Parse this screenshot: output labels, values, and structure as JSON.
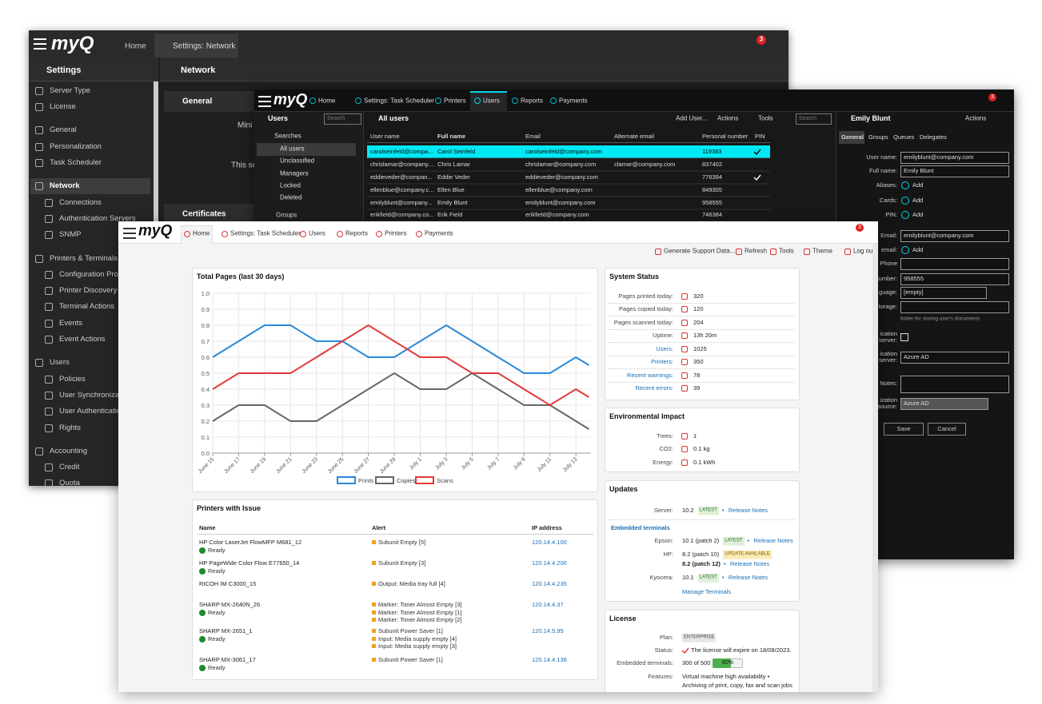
{
  "back": {
    "brand": "myQ",
    "tabs": [
      "Home",
      "Settings: Network"
    ],
    "badge": "3",
    "sidebar_title": "Settings",
    "panel_title": "Network",
    "sidebar": [
      "Server Type",
      "License",
      "General",
      "Personalization",
      "Task Scheduler",
      "Network",
      "Connections",
      "Authentication Servers",
      "SNMP",
      "Printers & Terminals",
      "Configuration Pro",
      "Printer Discovery",
      "Terminal Actions",
      "Events",
      "Event Actions",
      "Users",
      "Policies",
      "User Synchronizat",
      "User Authenticatio",
      "Rights",
      "Accounting",
      "Credit",
      "Quota"
    ],
    "sections": [
      "General",
      "Certificates"
    ],
    "texts": [
      "Mini",
      "This se"
    ]
  },
  "middle": {
    "brand": "myQ",
    "tabs": [
      "Home",
      "Settings: Task Scheduler",
      "Printers",
      "Users",
      "Reports",
      "Payments"
    ],
    "badge": "3",
    "left": {
      "title": "Users",
      "search": "Search",
      "searches": "Searches",
      "items": [
        "All users",
        "Unclassified",
        "Managers",
        "Locked",
        "Deleted"
      ],
      "groups": "Groups"
    },
    "list": {
      "title": "All users",
      "toolbar": [
        "Add User...",
        "Actions",
        "Tools"
      ],
      "search": "Search",
      "columns": [
        "User name",
        "Full name",
        "Email",
        "Alternate email",
        "Personal number",
        "PIN"
      ],
      "rows": [
        [
          "carolseinfeld@compa...",
          "Carol Seinfeld",
          "carolseinfeld@company.com",
          null,
          "119383"
        ],
        [
          "chrislamar@company....",
          "Chris Lamar",
          "chrislamar@company.com",
          "clamar@company.com",
          "837402"
        ],
        [
          "eddieveder@compan...",
          "Eddie Veder",
          "eddieveder@company.com",
          null,
          "776394"
        ],
        [
          "ellenblue@company.c...",
          "Ellen Blue",
          "ellenblue@company.com",
          null,
          "849305"
        ],
        [
          "emilyblunt@company...",
          "Emily Blunt",
          "emilyblunt@company.com",
          null,
          "958555"
        ],
        [
          "erikfield@company.co...",
          "Erik Field",
          "erikfield@company.com",
          null,
          "746384"
        ]
      ]
    },
    "detail": {
      "title": "Emily Blunt",
      "actions": "Actions",
      "tabs": [
        "General",
        "Groups",
        "Queues",
        "Delegates"
      ],
      "fields": [
        {
          "label": "User name:",
          "value": "emilyblunt@company.com"
        },
        {
          "label": "Full name:",
          "value": "Emily Blunt"
        },
        {
          "label": "Aliases:",
          "value": "Add"
        },
        {
          "label": "Cards:",
          "value": "Add"
        },
        {
          "label": "PIN:",
          "value": "Add"
        },
        {
          "label": "Email:",
          "value": "emilyblunt@company.com"
        },
        {
          "label": "email:",
          "value": "Add"
        },
        {
          "label": "Phone"
        },
        {
          "label": "number:",
          "value": "958555"
        },
        {
          "label": "guage:",
          "value": "[empty]"
        },
        {
          "label": "torage:"
        },
        {
          "label": "ication server:"
        },
        {
          "label": "ication server:",
          "value": "Azure AD"
        },
        {
          "label": "Notes:"
        },
        {
          "label": "ization source:",
          "value": "Azure AD"
        }
      ],
      "hint": "folder for storing user's documents",
      "buttons": [
        "Save",
        "Cancel"
      ]
    }
  },
  "front": {
    "brand": "myQ",
    "tabs": [
      "Home",
      "Settings: Task Scheduler",
      "Users",
      "Reports",
      "Printers",
      "Payments"
    ],
    "badge": "3",
    "toolbar": [
      "Generate Support Data...",
      "Refresh",
      "Tools",
      "Theme",
      "Log out"
    ],
    "chart": {
      "type": "line",
      "title": "Total Pages (last 30 days)",
      "x": [
        0,
        2,
        4,
        6,
        8,
        10,
        12,
        14,
        16,
        18,
        20,
        22,
        24,
        26,
        28,
        29
      ],
      "xlim": [
        0,
        29
      ],
      "xticks": [
        {
          "value": 0,
          "label": "June 15"
        },
        {
          "value": 2,
          "label": "June 17"
        },
        {
          "value": 4,
          "label": "June 19"
        },
        {
          "value": 6,
          "label": "June 21"
        },
        {
          "value": 8,
          "label": "June 23"
        },
        {
          "value": 10,
          "label": "June 25"
        },
        {
          "value": 12,
          "label": "June 27"
        },
        {
          "value": 14,
          "label": "June 29"
        },
        {
          "value": 16,
          "label": "July 1"
        },
        {
          "value": 18,
          "label": "July 3"
        },
        {
          "value": 20,
          "label": "July 5"
        },
        {
          "value": 22,
          "label": "July 7"
        },
        {
          "value": 24,
          "label": "July 9"
        },
        {
          "value": 26,
          "label": "July 11"
        },
        {
          "value": 28,
          "label": "July 13"
        }
      ],
      "ylim": [
        0,
        1
      ],
      "yticks": [
        {
          "value": 0,
          "label": "0.0"
        },
        0.1,
        0.2,
        0.3,
        0.4,
        0.5,
        0.6,
        0.7,
        0.8,
        0.9,
        {
          "value": 1,
          "label": "1.0"
        }
      ],
      "grid": true,
      "legend": "bottom",
      "series": [
        {
          "name": "Prints",
          "color": "#2a88d8",
          "values": [
            0.6,
            0.7,
            0.8,
            0.8,
            0.7,
            0.7,
            0.6,
            0.6,
            0.7,
            0.8,
            0.7,
            0.6,
            0.5,
            0.5,
            0.6,
            0.55
          ]
        },
        {
          "name": "Copies",
          "color": "#666666",
          "values": [
            0.2,
            0.3,
            0.3,
            0.2,
            0.2,
            0.3,
            0.4,
            0.5,
            0.4,
            0.4,
            0.5,
            0.4,
            0.3,
            0.3,
            0.2,
            0.15
          ]
        },
        {
          "name": "Scans",
          "color": "#e03a3a",
          "values": [
            0.4,
            0.5,
            0.5,
            0.5,
            0.6,
            0.7,
            0.8,
            0.7,
            0.6,
            0.6,
            0.5,
            0.5,
            0.4,
            0.3,
            0.4,
            0.35
          ]
        }
      ]
    },
    "printers": {
      "title": "Printers with Issue",
      "columns": [
        "Name",
        "Alert",
        "IP address"
      ],
      "rows": [
        {
          "name": "HP Color LaserJet FlowMFP M681_12",
          "status": "Ready",
          "alerts": [
            "Subunit Empty [5]"
          ],
          "ip": "120.14.4.100"
        },
        {
          "name": "HP PageWide Color Flow E77650_14",
          "status": "Ready",
          "alerts": [
            "Subunit Empty [3]"
          ],
          "ip": "120.14.4.200"
        },
        {
          "name": "RICOH IM C3000_15",
          "alerts": [
            "Output: Media tray full [4]"
          ],
          "ip": "120.14.4.235"
        },
        {
          "name": "SHARP MX-2640N_26",
          "status": "Ready",
          "alerts": [
            "Marker: Toner Almost Empty [3]",
            "Marker: Toner Almost Empty [1]",
            "Marker: Toner Almost Empty [2]"
          ],
          "ip": "120.14.4.37"
        },
        {
          "name": "SHARP MX-2651_1",
          "status": "Ready",
          "alerts": [
            "Subunit Power Saver [1]",
            "Input: Media supply empty [4]",
            "Input: Media supply empty [3]"
          ],
          "ip": "120.14.5.95"
        },
        {
          "name": "SHARP MX-3061_17",
          "status": "Ready",
          "alerts": [
            "Subunit Power Saver [1]"
          ],
          "ip": "120.14.4.138"
        }
      ]
    },
    "system_status": {
      "title": "System Status",
      "rows": [
        {
          "label": "Pages printed today:",
          "value": "320"
        },
        {
          "label": "Pages copied today:",
          "value": "120"
        },
        {
          "label": "Pages scanned today:",
          "value": "204"
        },
        {
          "label": "Uptime:",
          "value": "13h 20m"
        },
        {
          "label": "Users:",
          "value": "1025"
        },
        {
          "label": "Printers:",
          "value": "350"
        },
        {
          "label": "Recent warnings:",
          "value": "78"
        },
        {
          "label": "Recent errors:",
          "value": "39"
        }
      ]
    },
    "environment": {
      "title": "Environmental Impact",
      "rows": [
        {
          "label": "Trees:",
          "value": "1"
        },
        {
          "label": "CO2:",
          "value": "0.1 kg"
        },
        {
          "label": "Energy:",
          "value": "0.1 kWh"
        }
      ]
    },
    "updates": {
      "title": "Updates",
      "sep": "•",
      "server": {
        "label": "Server:",
        "version": "10.2",
        "badge": "LATEST",
        "link": "Release Notes"
      },
      "subtitle": "Embedded terminals",
      "terminals": [
        {
          "label": "Epson:",
          "version": "10.1 (patch 2)",
          "badge": "LATEST",
          "link": "Release Notes"
        },
        {
          "label": "HP:",
          "version": "8.2 (patch 10)",
          "badge": "UPDATE AVAILABLE",
          "next": "8.2 (patch 12)",
          "link": "Release Notes"
        },
        {
          "label": "Kyocera:",
          "version": "10.1",
          "badge": "LATEST",
          "link": "Release Notes"
        }
      ],
      "manage": "Manage Terminals"
    },
    "license": {
      "title": "License",
      "plan": {
        "label": "Plan:",
        "value": "ENTERPRISE"
      },
      "status": {
        "label": "Status:",
        "value": "The license will expire on 18/08/2023."
      },
      "terminals": {
        "label": "Embedded terminals:",
        "value": "300 of 500",
        "progress": {
          "value": 60,
          "label": "60%"
        }
      },
      "features": {
        "label": "Features:",
        "lines": [
          "Virtual machine high availability •",
          "Archiving of print, copy, fax and scan jobs"
        ]
      }
    }
  }
}
